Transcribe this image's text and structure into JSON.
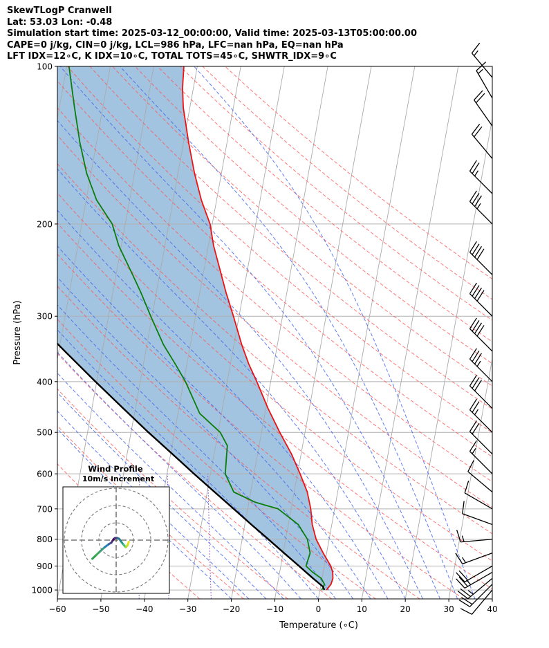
{
  "header": {
    "title": "SkewTLogP Cranwell",
    "location": "Lat: 53.03   Lon: -0.48",
    "times": "Simulation start time: 2025-03-12_00:00:00, Valid time: 2025-03-13T05:00:00.00",
    "params": "CAPE=0 j/kg, CIN=0 j/kg, LCL=986 hPa, LFC=nan hPa, EQ=nan hPa",
    "indices": "LFT IDX=12∘C, K IDX=10∘C, TOTAL TOTS=45∘C, SHWTR_IDX=9∘C"
  },
  "colors": {
    "temperature": "#ee1111",
    "dewpoint": "#0a7d0a",
    "parcel": "#000000",
    "cape_fill": "#a2c4e0",
    "dry_adiabat": "#ff5555",
    "moist_adiabat": "#4466ee",
    "mixing_ratio": "#8844cc",
    "isotherm": "#aaaaaa"
  },
  "chart_data": {
    "type": "line",
    "title": "",
    "xlabel": "Temperature (∘C)",
    "ylabel": "Pressure (hPa)",
    "xlim": [
      -60,
      40
    ],
    "ylim": [
      1040,
      100
    ],
    "y_scale": "log",
    "x_ticks": [
      "−60",
      "−50",
      "−40",
      "−30",
      "−20",
      "−10",
      "0",
      "10",
      "20",
      "30",
      "40"
    ],
    "y_ticks": [
      "100",
      "200",
      "300",
      "400",
      "500",
      "600",
      "700",
      "800",
      "900",
      "1000"
    ],
    "grid": true,
    "series": [
      {
        "id": "temperature",
        "points": [
          [
            1000,
            1.5
          ],
          [
            975,
            2.3
          ],
          [
            950,
            2.5
          ],
          [
            925,
            2.2
          ],
          [
            900,
            1.5
          ],
          [
            850,
            -0.8
          ],
          [
            800,
            -3
          ],
          [
            750,
            -4.5
          ],
          [
            700,
            -5.5
          ],
          [
            650,
            -7.0
          ],
          [
            600,
            -9.4
          ],
          [
            550,
            -12.2
          ],
          [
            500,
            -15.8
          ],
          [
            450,
            -19.5
          ],
          [
            400,
            -23.2
          ],
          [
            370,
            -25.8
          ],
          [
            340,
            -28.2
          ],
          [
            300,
            -31.3
          ],
          [
            270,
            -34.0
          ],
          [
            250,
            -35.8
          ],
          [
            220,
            -38.8
          ],
          [
            200,
            -40.5
          ],
          [
            180,
            -43.5
          ],
          [
            160,
            -46.2
          ],
          [
            140,
            -48.8
          ],
          [
            120,
            -51.5
          ],
          [
            110,
            -52.5
          ],
          [
            100,
            -53.1
          ]
        ]
      },
      {
        "id": "dewpoint",
        "points": [
          [
            1000,
            0.4
          ],
          [
            975,
            0.8
          ],
          [
            950,
            -0.2
          ],
          [
            925,
            -2.4
          ],
          [
            900,
            -4.2
          ],
          [
            850,
            -3.8
          ],
          [
            800,
            -5.0
          ],
          [
            750,
            -7.7
          ],
          [
            700,
            -13.0
          ],
          [
            680,
            -18.5
          ],
          [
            650,
            -23.9
          ],
          [
            600,
            -26.6
          ],
          [
            560,
            -27.0
          ],
          [
            530,
            -27.3
          ],
          [
            500,
            -29.5
          ],
          [
            460,
            -35.0
          ],
          [
            400,
            -39.6
          ],
          [
            370,
            -42.7
          ],
          [
            340,
            -46.2
          ],
          [
            300,
            -50.3
          ],
          [
            270,
            -53.6
          ],
          [
            250,
            -56.2
          ],
          [
            220,
            -60.6
          ],
          [
            200,
            -63.0
          ],
          [
            180,
            -67.6
          ],
          [
            160,
            -71.0
          ],
          [
            140,
            -73.8
          ],
          [
            120,
            -76.5
          ],
          [
            100,
            -79.5
          ]
        ]
      },
      {
        "id": "parcel",
        "points": [
          [
            1000,
            1.0
          ],
          [
            986,
            0.6
          ],
          [
            950,
            -2.1
          ],
          [
            900,
            -5.8
          ],
          [
            850,
            -9.8
          ],
          [
            800,
            -14.0
          ],
          [
            750,
            -18.5
          ],
          [
            700,
            -23.2
          ],
          [
            650,
            -28.3
          ],
          [
            600,
            -33.8
          ],
          [
            550,
            -39.6
          ],
          [
            500,
            -46.0
          ],
          [
            450,
            -52.8
          ],
          [
            400,
            -60.3
          ],
          [
            350,
            -68.6
          ],
          [
            300,
            -78.0
          ],
          [
            250,
            -89.0
          ],
          [
            200,
            -102.0
          ],
          [
            150,
            -118.0
          ],
          [
            100,
            -139.0
          ]
        ]
      }
    ],
    "annotations": [
      {
        "type": "fill",
        "between": [
          "temperature",
          "parcel"
        ],
        "label": "CAPE/CIN shading"
      },
      {
        "type": "lines",
        "label": "dry adiabats"
      },
      {
        "type": "lines",
        "label": "moist adiabats"
      },
      {
        "type": "lines",
        "label": "mixing ratio"
      }
    ],
    "wind_barbs": [
      {
        "pressure": 1000,
        "speed_kt": 10,
        "direction": 220
      },
      {
        "pressure": 975,
        "speed_kt": 20,
        "direction": 225
      },
      {
        "pressure": 950,
        "speed_kt": 25,
        "direction": 230
      },
      {
        "pressure": 925,
        "speed_kt": 25,
        "direction": 240
      },
      {
        "pressure": 900,
        "speed_kt": 20,
        "direction": 240
      },
      {
        "pressure": 850,
        "speed_kt": 15,
        "direction": 250
      },
      {
        "pressure": 800,
        "speed_kt": 15,
        "direction": 265
      },
      {
        "pressure": 750,
        "speed_kt": 10,
        "direction": 290
      },
      {
        "pressure": 700,
        "speed_kt": 10,
        "direction": 300
      },
      {
        "pressure": 650,
        "speed_kt": 10,
        "direction": 310
      },
      {
        "pressure": 600,
        "speed_kt": 15,
        "direction": 315
      },
      {
        "pressure": 550,
        "speed_kt": 20,
        "direction": 315
      },
      {
        "pressure": 500,
        "speed_kt": 25,
        "direction": 315
      },
      {
        "pressure": 450,
        "speed_kt": 30,
        "direction": 315
      },
      {
        "pressure": 400,
        "speed_kt": 35,
        "direction": 315
      },
      {
        "pressure": 350,
        "speed_kt": 40,
        "direction": 315
      },
      {
        "pressure": 300,
        "speed_kt": 40,
        "direction": 315
      },
      {
        "pressure": 250,
        "speed_kt": 40,
        "direction": 315
      },
      {
        "pressure": 200,
        "speed_kt": 35,
        "direction": 315
      },
      {
        "pressure": 175,
        "speed_kt": 25,
        "direction": 315
      },
      {
        "pressure": 150,
        "speed_kt": 20,
        "direction": 320
      },
      {
        "pressure": 130,
        "speed_kt": 20,
        "direction": 325
      },
      {
        "pressure": 115,
        "speed_kt": 15,
        "direction": 330
      },
      {
        "pressure": 105,
        "speed_kt": 15,
        "direction": 320
      }
    ],
    "hodograph": {
      "title": "Wind Profile",
      "subtitle": "10m/s increment",
      "points_ms": [
        [
          -13.8,
          -10.8
        ],
        [
          -11.5,
          -8.6
        ],
        [
          -9.3,
          -6.5
        ],
        [
          -6.5,
          -4.0
        ],
        [
          -4.2,
          -2.3
        ],
        [
          -2.8,
          -1.5
        ],
        [
          -2.1,
          -0.4
        ],
        [
          -1.5,
          0.5
        ],
        [
          -0.7,
          1.2
        ],
        [
          0.5,
          1.3
        ],
        [
          1.8,
          0.7
        ],
        [
          3.2,
          -1.3
        ],
        [
          4.4,
          -2.8
        ],
        [
          5.5,
          -4.1
        ],
        [
          6.4,
          -3.3
        ],
        [
          7.0,
          -1.9
        ],
        [
          7.3,
          -1.0
        ]
      ]
    }
  }
}
